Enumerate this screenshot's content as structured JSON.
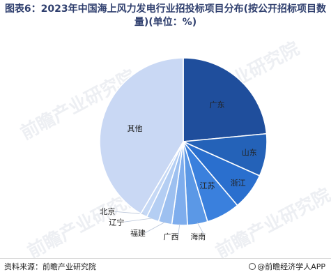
{
  "title": "图表6：2023年中国海上风力发电行业招投标项目分布(按公开招标项目数量)(单位：%)",
  "watermark": "前瞻产业研究院",
  "footer": {
    "source": "资料来源：前瞻产业研究院",
    "brand": "@前瞻经济学人APP"
  },
  "colors": {
    "广东": "#1f4e9c",
    "山东": "#2462b8",
    "浙江": "#2a6fce",
    "江苏": "#3a80dd",
    "海南": "#5b98e6",
    "广西": "#7eaded",
    "福建": "#9dc0f0",
    "辽宁": "#b4cef3",
    "北京": "#c5d8f5",
    "其他": "#c9d8f4"
  },
  "chart_data": {
    "type": "pie",
    "categories": [
      "广东",
      "山东",
      "浙江",
      "江苏",
      "海南",
      "广西",
      "福建",
      "辽宁",
      "北京",
      "其他"
    ],
    "values": [
      23.5,
      8.2,
      7.1,
      6.5,
      3.9,
      3.0,
      2.6,
      2.4,
      1.3,
      41.5
    ]
  }
}
